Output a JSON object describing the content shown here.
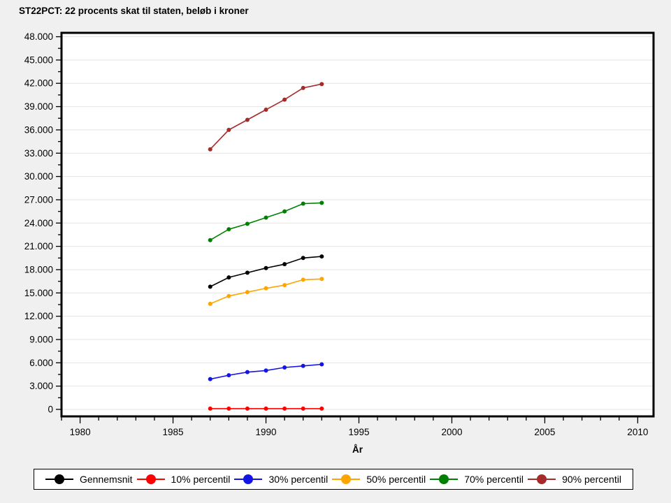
{
  "page": {
    "background": "#f0f0f0",
    "plot_background": "#ffffff",
    "gridline_color": "#e4e4e4",
    "frame_color": "#000000"
  },
  "chart_data": {
    "type": "line",
    "title": "ST22PCT: 22 procents skat til staten, beløb i kroner",
    "xlabel": "År",
    "ylabel": "",
    "grid": "horizontal-major-only",
    "legend_position": "bottom",
    "x": [
      1987,
      1988,
      1989,
      1990,
      1991,
      1992,
      1993
    ],
    "series": [
      {
        "name": "Gennemsnit",
        "color": "#000000",
        "values": [
          15800,
          17000,
          17600,
          18200,
          18700,
          19500,
          19700
        ]
      },
      {
        "name": "10% percentil",
        "color": "#ff0000",
        "values": [
          100,
          100,
          100,
          100,
          100,
          100,
          100
        ]
      },
      {
        "name": "30% percentil",
        "color": "#1414e6",
        "values": [
          3900,
          4400,
          4800,
          5000,
          5400,
          5600,
          5800
        ]
      },
      {
        "name": "50% percentil",
        "color": "#ffa500",
        "values": [
          13600,
          14600,
          15100,
          15600,
          16000,
          16700,
          16800
        ]
      },
      {
        "name": "70% percentil",
        "color": "#008000",
        "values": [
          21800,
          23200,
          23900,
          24700,
          25500,
          26500,
          26600
        ]
      },
      {
        "name": "90% percentil",
        "color": "#a52a2a",
        "values": [
          33500,
          36000,
          37300,
          38600,
          39900,
          41400,
          41900
        ]
      }
    ],
    "x_axis": {
      "min": 1979,
      "max": 2010.85,
      "major_ticks": [
        1980,
        1985,
        1990,
        1995,
        2000,
        2005,
        2010
      ],
      "major_labels": [
        "1980",
        "1985",
        "1990",
        "1995",
        "2000",
        "2005",
        "2010"
      ],
      "minor_from": 1979,
      "minor_to": 2010,
      "minor_step": 1
    },
    "y_axis": {
      "min": -900,
      "max": 48500,
      "major_ticks": [
        0,
        3000,
        6000,
        9000,
        12000,
        15000,
        18000,
        21000,
        24000,
        27000,
        30000,
        33000,
        36000,
        39000,
        42000,
        45000,
        48000
      ],
      "major_labels": [
        "0",
        "3.000",
        "6.000",
        "9.000",
        "12.000",
        "15.000",
        "18.000",
        "21.000",
        "24.000",
        "27.000",
        "30.000",
        "33.000",
        "36.000",
        "39.000",
        "42.000",
        "45.000",
        "48.000"
      ],
      "minor_from": 1500,
      "minor_to": 46500,
      "minor_step": 3000
    }
  }
}
